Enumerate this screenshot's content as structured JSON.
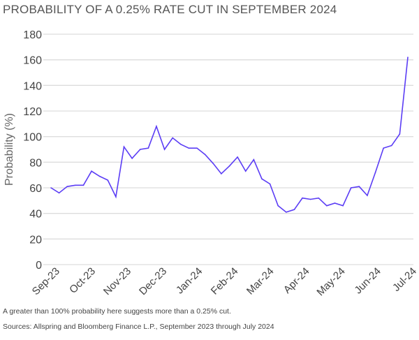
{
  "chart_data": {
    "type": "line",
    "title": "PROBABILITY OF A 0.25% RATE CUT IN SEPTEMBER 2024",
    "ylabel": "Probability (%)",
    "xlabel": "",
    "ylim": [
      0,
      180
    ],
    "yticks": [
      0,
      20,
      40,
      60,
      80,
      100,
      120,
      140,
      160,
      180
    ],
    "xtick_labels": [
      "Sep-23",
      "Oct-23",
      "Nov-23",
      "Dec-23",
      "Jan-24",
      "Feb-24",
      "Mar-24",
      "Apr-24",
      "May-24",
      "Jun-24",
      "Jul-24"
    ],
    "grid": true,
    "line_color": "#5b3df5",
    "values": [
      60,
      56,
      61,
      62,
      62,
      73,
      69,
      66,
      53,
      92,
      83,
      90,
      91,
      108,
      90,
      99,
      94,
      91,
      91,
      86,
      79,
      71,
      77,
      84,
      73,
      82,
      67,
      63,
      46,
      41,
      43,
      52,
      51,
      52,
      46,
      48,
      46,
      60,
      61,
      54,
      72,
      91,
      93,
      102,
      162
    ]
  },
  "notes": [
    "A greater than 100% probability here suggests more than a 0.25% cut.",
    "Sources: Allspring and Bloomberg Finance L.P., September 2023 through July 2024"
  ]
}
